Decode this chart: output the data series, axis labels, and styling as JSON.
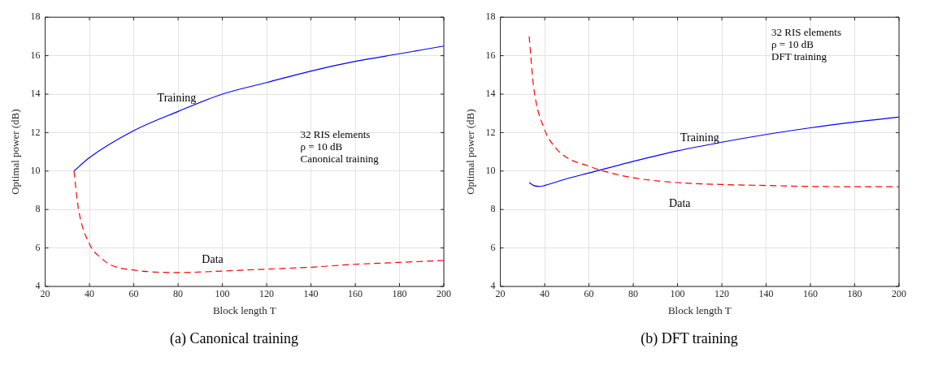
{
  "chart_data": [
    {
      "type": "line",
      "title": "(a) Canonical training",
      "xlabel": "Block length T",
      "ylabel": "Optimal power (dB)",
      "xlim": [
        20,
        200
      ],
      "xticks": [
        20,
        40,
        60,
        80,
        100,
        120,
        140,
        160,
        180,
        200
      ],
      "ylim": [
        4,
        18
      ],
      "yticks": [
        4,
        6,
        8,
        10,
        12,
        14,
        16,
        18
      ],
      "grid": true,
      "legend": false,
      "marker": "none",
      "annotations": [
        "32 RIS elements",
        "ρ = 10 dB",
        "Canonical training"
      ],
      "series": [
        {
          "name": "Training",
          "color": "#0000ff",
          "line_style": "solid",
          "x": [
            33,
            40,
            60,
            80,
            100,
            120,
            140,
            160,
            180,
            200
          ],
          "values": [
            10,
            10.7,
            12.1,
            13.1,
            14.0,
            14.6,
            15.2,
            15.7,
            16.1,
            16.5
          ]
        },
        {
          "name": "Data",
          "color": "#ff0000",
          "line_style": "dashed",
          "x": [
            33,
            35,
            40,
            45,
            50,
            60,
            80,
            100,
            120,
            140,
            160,
            180,
            200
          ],
          "values": [
            10,
            8.05,
            6.2,
            5.5,
            5.1,
            4.85,
            4.72,
            4.8,
            4.9,
            5.0,
            5.15,
            5.25,
            5.35
          ]
        }
      ]
    },
    {
      "type": "line",
      "title": "(b) DFT training",
      "xlabel": "Block length T",
      "ylabel": "Optimal power (dB)",
      "xlim": [
        20,
        200
      ],
      "xticks": [
        20,
        40,
        60,
        80,
        100,
        120,
        140,
        160,
        180,
        200
      ],
      "ylim": [
        4,
        18
      ],
      "yticks": [
        4,
        6,
        8,
        10,
        12,
        14,
        16,
        18
      ],
      "grid": true,
      "legend": false,
      "marker": "none",
      "annotations": [
        "32 RIS elements",
        "ρ = 10 dB",
        "DFT training"
      ],
      "series": [
        {
          "name": "Training",
          "color": "#0000ff",
          "line_style": "solid",
          "x": [
            33,
            35,
            38,
            40,
            50,
            60,
            80,
            100,
            120,
            140,
            160,
            180,
            200
          ],
          "values": [
            9.4,
            9.25,
            9.2,
            9.25,
            9.6,
            9.9,
            10.5,
            11.05,
            11.5,
            11.9,
            12.25,
            12.55,
            12.8
          ]
        },
        {
          "name": "Data",
          "color": "#ff0000",
          "line_style": "dashed",
          "x": [
            33,
            35,
            40,
            45,
            50,
            60,
            65,
            80,
            100,
            120,
            140,
            160,
            200
          ],
          "values": [
            17.0,
            14.4,
            12.15,
            11.2,
            10.7,
            10.25,
            10.05,
            9.65,
            9.4,
            9.3,
            9.25,
            9.2,
            9.18
          ]
        }
      ]
    }
  ]
}
